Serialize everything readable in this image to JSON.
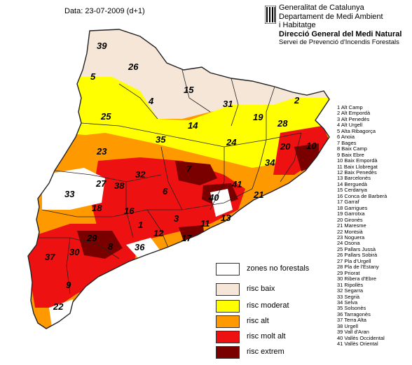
{
  "date_label": "Data: 23-07-2009 (d+1)",
  "header": {
    "line1": "Generalitat de Catalunya",
    "line2": "Departament de Medi Ambient",
    "line3": "i Habitatge",
    "line4": "Direcció General del Medi Natural",
    "line5": "Servei de Prevenció d'Incendis Forestals"
  },
  "colors": {
    "no_forest": "#ffffff",
    "low": "#f5e6d8",
    "moderate": "#ffff00",
    "high": "#ff9900",
    "very_high": "#ee1111",
    "extreme": "#7a0000",
    "border": "#222222"
  },
  "legend": [
    {
      "label": "zones no forestals",
      "color": "#ffffff"
    },
    {
      "label": "risc baix",
      "color": "#f5e6d8"
    },
    {
      "label": "risc moderat",
      "color": "#ffff00"
    },
    {
      "label": "risc alt",
      "color": "#ff9900"
    },
    {
      "label": "risc molt alt",
      "color": "#ee1111"
    },
    {
      "label": "risc extrem",
      "color": "#7a0000"
    }
  ],
  "county_numbers": [
    "39",
    "26",
    "15",
    "5",
    "4",
    "31",
    "2",
    "25",
    "19",
    "28",
    "14",
    "35",
    "24",
    "23",
    "20",
    "10",
    "34",
    "32",
    "7",
    "27",
    "38",
    "6",
    "41",
    "33",
    "21",
    "40",
    "18",
    "16",
    "3",
    "1",
    "12",
    "11",
    "13",
    "29",
    "17",
    "8",
    "36",
    "37",
    "30",
    "9",
    "22"
  ],
  "counties": [
    "1 Alt Camp",
    "2 Alt Empordà",
    "3 Alt Penedès",
    "4 Alt Urgell",
    "5 Alta Ribagorça",
    "6 Anoia",
    "7 Bages",
    "8 Baix Camp",
    "9 Baix Ebre",
    "10 Baix Empordà",
    "11 Baix Llobregat",
    "12 Baix Penedès",
    "13 Barcelonès",
    "14 Berguedà",
    "15 Cerdanya",
    "16 Conca de Barberà",
    "17 Garraf",
    "18 Garrigues",
    "19 Garrotxa",
    "20 Gironès",
    "21 Maresme",
    "22 Montsià",
    "23 Noguera",
    "24 Osona",
    "25 Pallars Jussà",
    "26 Pallars Sobirà",
    "27 Pla d'Urgell",
    "28 Pla de l'Estany",
    "29 Priorat",
    "30 Ribera d'Ebre",
    "31 Ripollès",
    "32 Segarra",
    "33 Segrià",
    "34 Selva",
    "35 Solsonès",
    "36 Tarragonès",
    "37 Terra Alta",
    "38 Urgell",
    "39 Vall d'Aran",
    "40 Vallès Occidental",
    "41 Vallès Oriental"
  ]
}
